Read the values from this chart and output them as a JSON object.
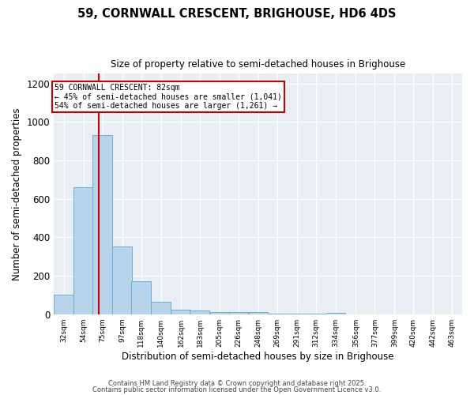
{
  "title1": "59, CORNWALL CRESCENT, BRIGHOUSE, HD6 4DS",
  "title2": "Size of property relative to semi-detached houses in Brighouse",
  "xlabel": "Distribution of semi-detached houses by size in Brighouse",
  "ylabel": "Number of semi-detached properties",
  "bins": [
    32,
    54,
    75,
    97,
    118,
    140,
    162,
    183,
    205,
    226,
    248,
    269,
    291,
    312,
    334,
    356,
    377,
    399,
    420,
    442,
    463
  ],
  "heights": [
    100,
    660,
    930,
    350,
    170,
    65,
    25,
    18,
    12,
    12,
    12,
    3,
    2,
    2,
    7,
    0,
    0,
    0,
    0,
    0,
    0
  ],
  "bar_color": "#b8d4ea",
  "bar_edgecolor": "#6aaed6",
  "property_size": 82,
  "vline_color": "#cc0000",
  "annotation_line1": "59 CORNWALL CRESCENT: 82sqm",
  "annotation_line2": "← 45% of semi-detached houses are smaller (1,041)",
  "annotation_line3": "54% of semi-detached houses are larger (1,261) →",
  "annotation_box_color": "#ffffff",
  "annotation_box_edgecolor": "#cc0000",
  "ylim": [
    0,
    1250
  ],
  "yticks": [
    0,
    200,
    400,
    600,
    800,
    1000,
    1200
  ],
  "background_color": "#e8eef4",
  "footer1": "Contains HM Land Registry data © Crown copyright and database right 2025.",
  "footer2": "Contains public sector information licensed under the Open Government Licence v3.0."
}
